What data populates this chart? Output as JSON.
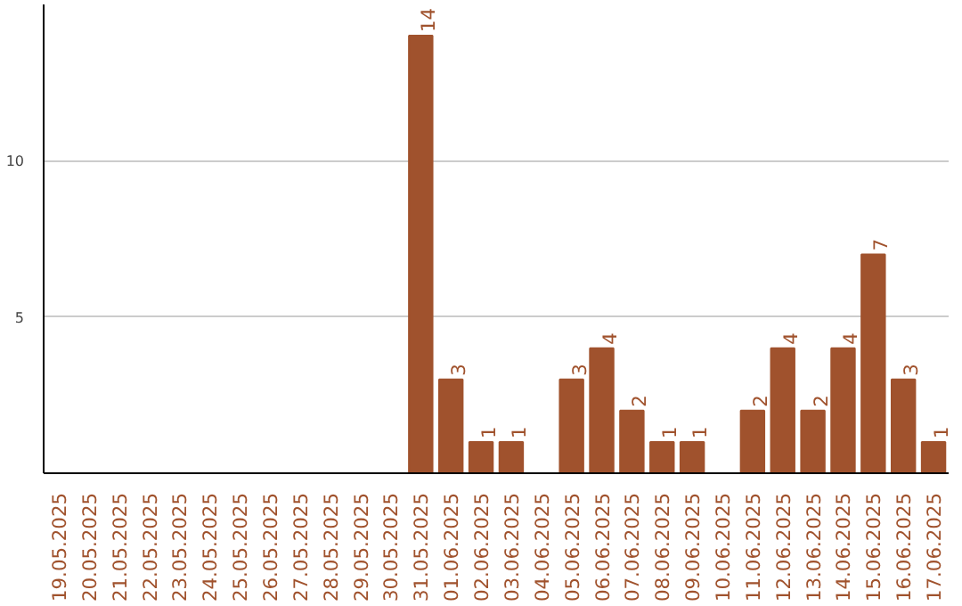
{
  "chart_data": {
    "type": "bar",
    "categories": [
      "19.05.2025",
      "20.05.2025",
      "21.05.2025",
      "22.05.2025",
      "23.05.2025",
      "24.05.2025",
      "25.05.2025",
      "26.05.2025",
      "27.05.2025",
      "28.05.2025",
      "29.05.2025",
      "30.05.2025",
      "31.05.2025",
      "01.06.2025",
      "02.06.2025",
      "03.06.2025",
      "04.06.2025",
      "05.06.2025",
      "06.06.2025",
      "07.06.2025",
      "08.06.2025",
      "09.06.2025",
      "10.06.2025",
      "11.06.2025",
      "12.06.2025",
      "13.06.2025",
      "14.06.2025",
      "15.06.2025",
      "16.06.2025",
      "17.06.2025"
    ],
    "values": [
      0,
      0,
      0,
      0,
      0,
      0,
      0,
      0,
      0,
      0,
      0,
      0,
      14,
      3,
      1,
      1,
      0,
      3,
      4,
      2,
      1,
      1,
      0,
      2,
      4,
      2,
      4,
      7,
      3,
      1
    ],
    "value_labels": [
      null,
      null,
      null,
      null,
      null,
      null,
      null,
      null,
      null,
      null,
      null,
      null,
      "14",
      "3",
      "1",
      "1",
      null,
      "3",
      "4",
      "2",
      "1",
      "1",
      null,
      "2",
      "4",
      "2",
      "4",
      "7",
      "3",
      "1"
    ],
    "color": "#a0522d",
    "ylim": [
      0,
      15
    ],
    "yticks": [
      5,
      10
    ],
    "grid": "y"
  }
}
